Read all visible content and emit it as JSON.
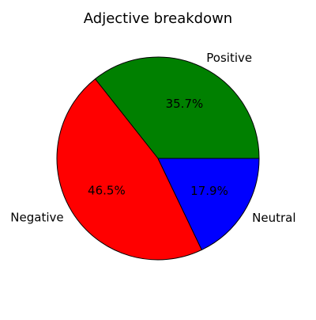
{
  "chart_data": {
    "type": "pie",
    "title": "Adjective breakdown",
    "slices": [
      {
        "label": "Positive",
        "value": 35.7,
        "pct_label": "35.7%",
        "color": "#008000"
      },
      {
        "label": "Negative",
        "value": 46.5,
        "pct_label": "46.5%",
        "color": "#ff0000"
      },
      {
        "label": "Neutral",
        "value": 17.9,
        "pct_label": "17.9%",
        "color": "#0000ff"
      }
    ],
    "start_angle_deg": 0,
    "direction": "counterclockwise",
    "edge_color": "#000000"
  }
}
